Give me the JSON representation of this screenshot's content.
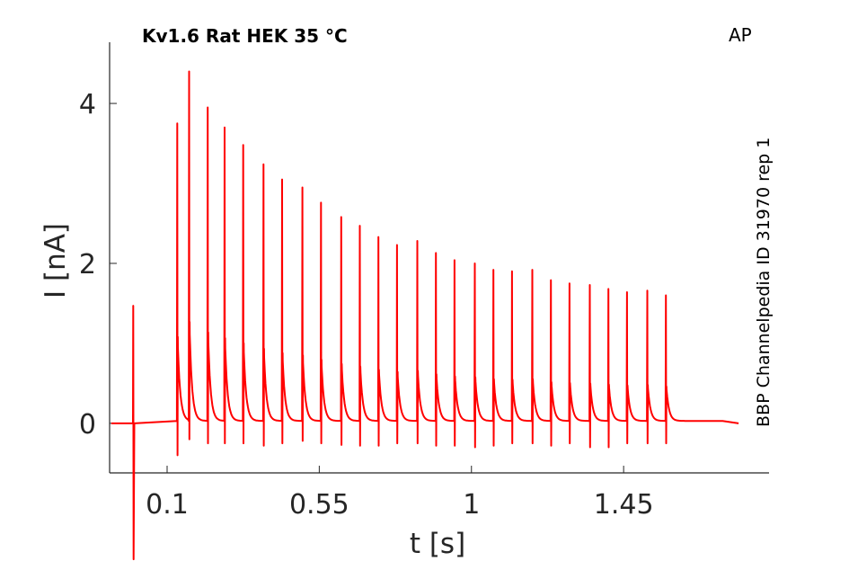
{
  "chart_data": {
    "type": "line",
    "title": "Kv1.6  Rat  HEK  35 °C",
    "corner_label": "AP",
    "side_label": "BBP Channelpedia ID 31970 rep 1",
    "xlabel": "t [s]",
    "ylabel": "I [nA]",
    "xlim": [
      -0.07,
      1.88
    ],
    "ylim": [
      -0.62,
      4.9
    ],
    "xticks": [
      0.1,
      0.55,
      1,
      1.45
    ],
    "xtick_labels": [
      "0.1",
      "0.55",
      "1",
      "1.45"
    ],
    "yticks": [
      0,
      2,
      4
    ],
    "ytick_labels": [
      "0",
      "2",
      "4"
    ],
    "grid": false,
    "series": [
      {
        "color": "#ff0000",
        "baseline": 0.0,
        "end_time": 1.79,
        "artifact": {
          "t": 0.0,
          "max": 1.47,
          "min": -1.7
        },
        "spikes": [
          {
            "t": 0.13,
            "peak": 3.75,
            "min": -0.4
          },
          {
            "t": 0.165,
            "peak": 4.4,
            "min": -0.2
          },
          {
            "t": 0.22,
            "peak": 3.95,
            "min": -0.25
          },
          {
            "t": 0.27,
            "peak": 3.7,
            "min": -0.25
          },
          {
            "t": 0.325,
            "peak": 3.48,
            "min": -0.25
          },
          {
            "t": 0.385,
            "peak": 3.24,
            "min": -0.28
          },
          {
            "t": 0.44,
            "peak": 3.05,
            "min": -0.25
          },
          {
            "t": 0.5,
            "peak": 2.95,
            "min": -0.22
          },
          {
            "t": 0.555,
            "peak": 2.76,
            "min": -0.25
          },
          {
            "t": 0.615,
            "peak": 2.58,
            "min": -0.27
          },
          {
            "t": 0.67,
            "peak": 2.47,
            "min": -0.28
          },
          {
            "t": 0.725,
            "peak": 2.33,
            "min": -0.28
          },
          {
            "t": 0.78,
            "peak": 2.23,
            "min": -0.25
          },
          {
            "t": 0.84,
            "peak": 2.28,
            "min": -0.25
          },
          {
            "t": 0.895,
            "peak": 2.13,
            "min": -0.28
          },
          {
            "t": 0.95,
            "peak": 2.04,
            "min": -0.28
          },
          {
            "t": 1.01,
            "peak": 2.0,
            "min": -0.3
          },
          {
            "t": 1.065,
            "peak": 1.92,
            "min": -0.28
          },
          {
            "t": 1.12,
            "peak": 1.9,
            "min": -0.25
          },
          {
            "t": 1.18,
            "peak": 1.92,
            "min": -0.25
          },
          {
            "t": 1.235,
            "peak": 1.79,
            "min": -0.28
          },
          {
            "t": 1.29,
            "peak": 1.75,
            "min": -0.25
          },
          {
            "t": 1.35,
            "peak": 1.73,
            "min": -0.3
          },
          {
            "t": 1.405,
            "peak": 1.68,
            "min": -0.3
          },
          {
            "t": 1.46,
            "peak": 1.64,
            "min": -0.25
          },
          {
            "t": 1.52,
            "peak": 1.66,
            "min": -0.25
          },
          {
            "t": 1.575,
            "peak": 1.6,
            "min": -0.25
          }
        ]
      }
    ]
  }
}
